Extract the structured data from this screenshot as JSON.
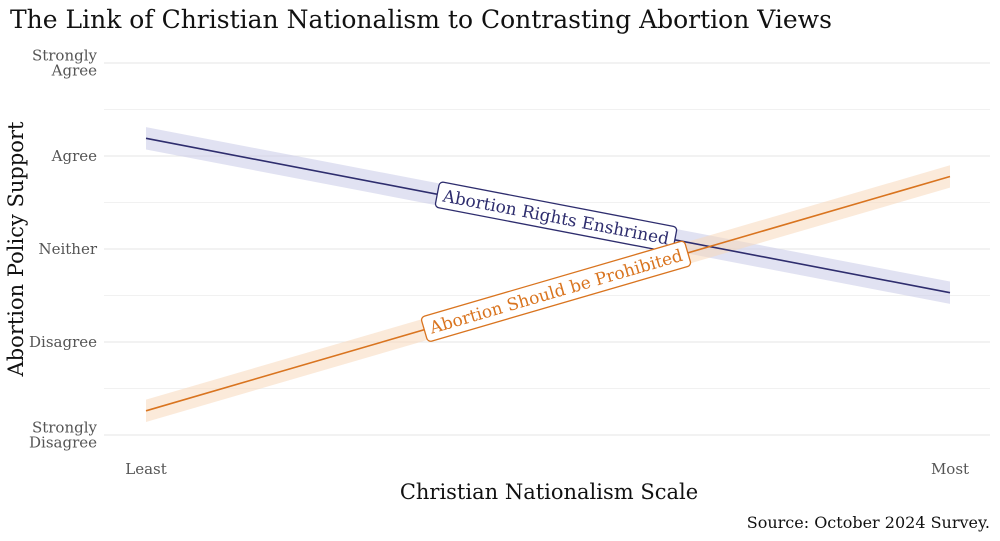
{
  "chart_data": {
    "type": "line",
    "title": "The Link of Christian Nationalism to Contrasting Abortion Views",
    "xlabel": "Christian Nationalism Scale",
    "ylabel": "Abortion Policy Support",
    "caption": "Source: October 2024 Survey.",
    "xlim": [
      0,
      1
    ],
    "ylim": [
      1,
      5
    ],
    "x_ticks": [
      {
        "value": 0,
        "label": "Least"
      },
      {
        "value": 1,
        "label": "Most"
      }
    ],
    "y_ticks": [
      {
        "value": 5,
        "lines": [
          "Strongly",
          "Agree"
        ]
      },
      {
        "value": 4,
        "lines": [
          "Agree"
        ]
      },
      {
        "value": 3,
        "lines": [
          "Neither"
        ]
      },
      {
        "value": 2,
        "lines": [
          "Disagree"
        ]
      },
      {
        "value": 1,
        "lines": [
          "Strongly",
          "Disagree"
        ]
      }
    ],
    "grid": true,
    "legend": "none",
    "series": [
      {
        "name": "Abortion Rights Enshrined",
        "color": "#2e2d6e",
        "band_color": "#c9cbe8",
        "x": [
          0,
          1
        ],
        "y": [
          4.19,
          2.53
        ],
        "ci": [
          0.12,
          0.12
        ],
        "label_at": 0.51
      },
      {
        "name": "Abortion Should be Prohibited",
        "color": "#d9741f",
        "band_color": "#f8d9bb",
        "x": [
          0,
          1
        ],
        "y": [
          1.26,
          3.78
        ],
        "ci": [
          0.12,
          0.12
        ],
        "label_at": 0.51
      }
    ]
  }
}
